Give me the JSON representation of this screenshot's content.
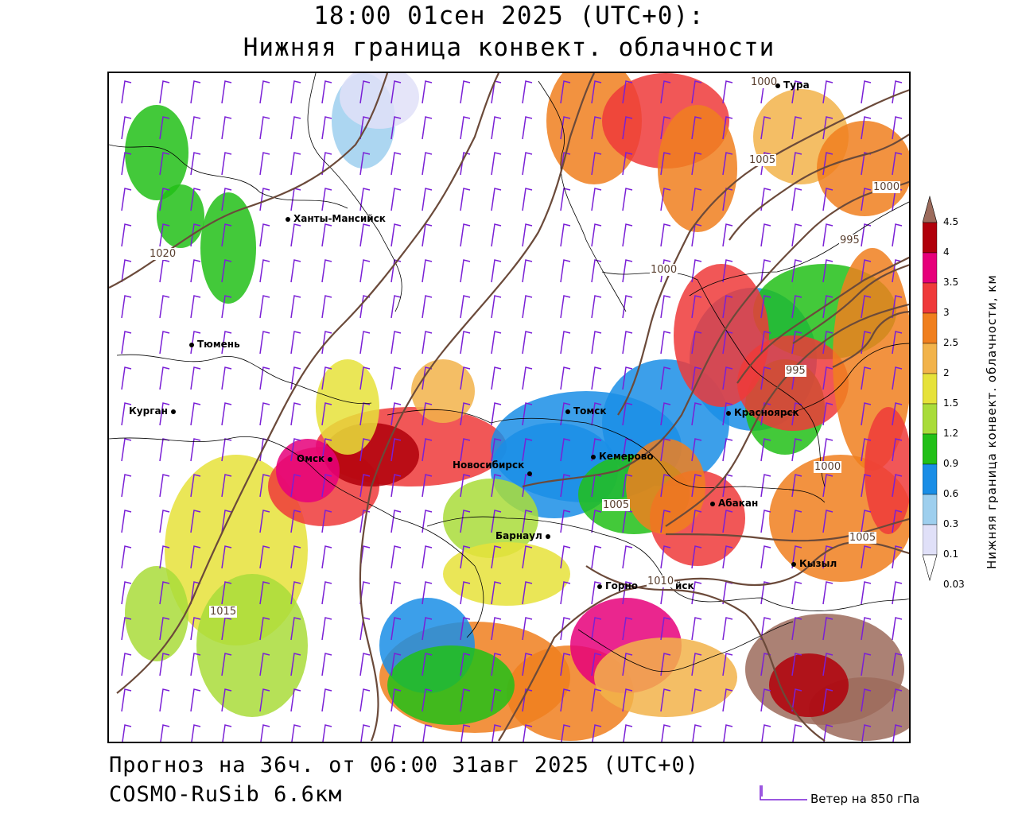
{
  "header": {
    "title_line1": "18:00 01сен 2025 (UTC+0):",
    "title_line2": "Нижняя граница конвект. облачности"
  },
  "footer": {
    "forecast": "Прогноз на 36ч. от 06:00 31авг 2025 (UTC+0)",
    "model": "COSMO-RuSib 6.6км",
    "wind_legend": "Ветер на 850 гПа"
  },
  "colorbar": {
    "title": "Нижняя граница конвект. облачности, км",
    "levels": [
      "4.5",
      "4",
      "3.5",
      "3",
      "2.5",
      "2",
      "1.5",
      "1.2",
      "0.9",
      "0.6",
      "0.3",
      "0.1",
      "0.03"
    ],
    "colors": [
      "#9c6b5c",
      "#b0000b",
      "#e6007a",
      "#ef3a3a",
      "#f07f1e",
      "#f2b34a",
      "#e6e23a",
      "#a9dc3a",
      "#22c018",
      "#1a8ee6",
      "#9ecfee",
      "#e0e0f8",
      "#ffffff"
    ]
  },
  "cities": [
    {
      "name": "Тура"
    },
    {
      "name": "Ханты-Мансийск"
    },
    {
      "name": "Тюмень"
    },
    {
      "name": "Курган"
    },
    {
      "name": "Омск"
    },
    {
      "name": "Томск"
    },
    {
      "name": "Кемерово"
    },
    {
      "name": "Новосибирск"
    },
    {
      "name": "Красноярск"
    },
    {
      "name": "Абакан"
    },
    {
      "name": "Барнаул"
    },
    {
      "name": "Кызыл"
    },
    {
      "name": "Горно"
    },
    {
      "name": "йск"
    }
  ],
  "isobars": [
    {
      "label": "1020"
    },
    {
      "label": "1015"
    },
    {
      "label": "1010"
    },
    {
      "label": "1005"
    },
    {
      "label": "1000"
    },
    {
      "label": "995"
    },
    {
      "label": "1005"
    },
    {
      "label": "1000"
    },
    {
      "label": "995"
    },
    {
      "label": "1000"
    },
    {
      "label": "1005"
    },
    {
      "label": "1010"
    },
    {
      "label": "1000"
    }
  ]
}
